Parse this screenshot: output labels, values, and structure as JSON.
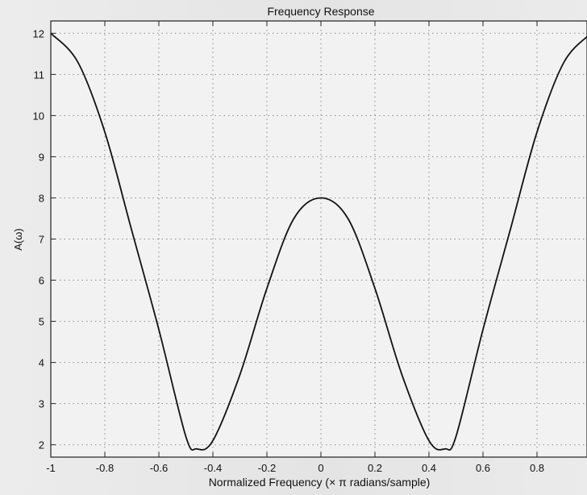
{
  "chart_data": {
    "type": "line",
    "title": "Frequency Response",
    "xlabel": "Normalized Frequency (× π radians/sample)",
    "ylabel": "A(ω)",
    "xlim": [
      -1,
      1
    ],
    "ylim": [
      1.7,
      12.3
    ],
    "grid": true,
    "x_ticks": [
      -1,
      -0.8,
      -0.6,
      -0.4,
      -0.2,
      0,
      0.2,
      0.4,
      0.6,
      0.8
    ],
    "x_tick_labels": [
      "-1",
      "-0.8",
      "-0.6",
      "-0.4",
      "-0.2",
      "0",
      "0.2",
      "0.4",
      "0.6",
      "0.8"
    ],
    "y_ticks": [
      2,
      3,
      4,
      5,
      6,
      7,
      8,
      9,
      10,
      11,
      12
    ],
    "y_tick_labels": [
      "2",
      "3",
      "4",
      "5",
      "6",
      "7",
      "8",
      "9",
      "10",
      "11",
      "12"
    ],
    "series": [
      {
        "color": "#111111",
        "x": [
          -1,
          -0.9,
          -0.8,
          -0.7,
          -0.6,
          -0.5,
          -0.46,
          -0.4,
          -0.3,
          -0.2,
          -0.1,
          0,
          0.1,
          0.2,
          0.3,
          0.4,
          0.46,
          0.5,
          0.6,
          0.7,
          0.8,
          0.9,
          1
        ],
        "y": [
          12,
          11.3,
          9.6,
          7.2,
          4.8,
          2.2,
          1.9,
          2.1,
          3.7,
          5.8,
          7.5,
          8,
          7.5,
          5.8,
          3.7,
          2.1,
          1.9,
          2.2,
          4.8,
          7.2,
          9.6,
          11.3,
          12
        ]
      }
    ]
  }
}
